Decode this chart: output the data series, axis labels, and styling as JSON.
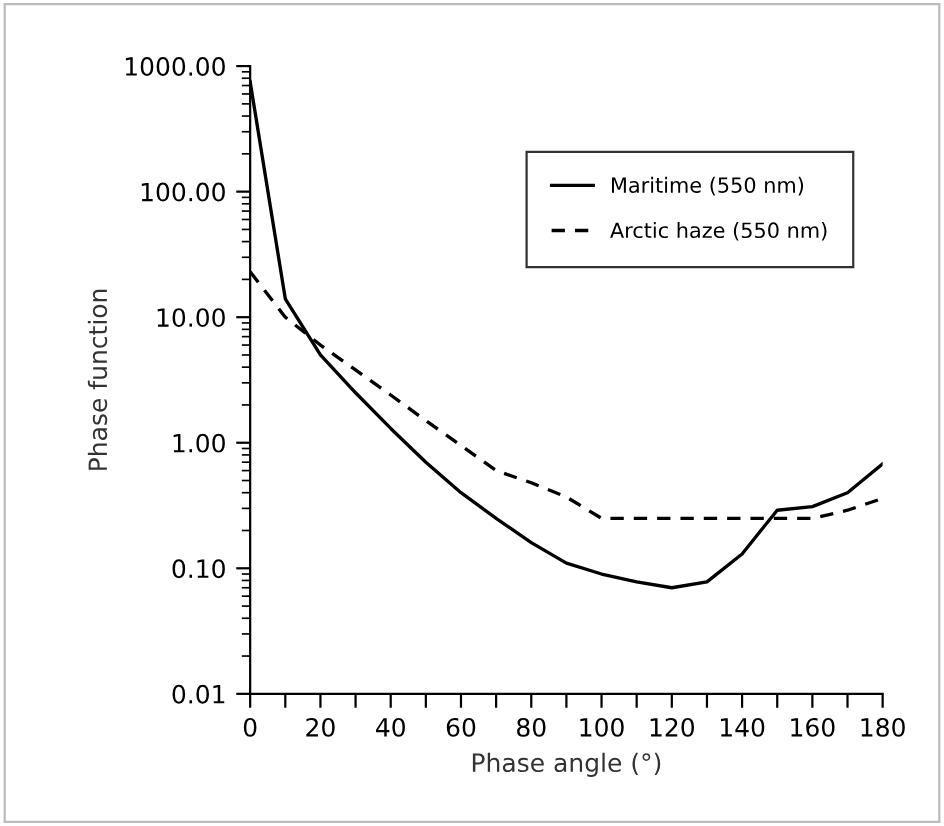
{
  "chart_data": {
    "type": "line",
    "xlabel": "Phase angle (°)",
    "ylabel": "Phase function",
    "log": "y",
    "grid": false,
    "legend": "top right",
    "x": [
      0,
      10,
      20,
      30,
      40,
      50,
      60,
      70,
      80,
      90,
      100,
      110,
      120,
      130,
      140,
      150,
      160,
      170,
      180
    ],
    "series": [
      {
        "name": "Maritime (550 nm)",
        "color": "#000000",
        "line_style": "solid",
        "values": [
          750,
          14,
          5,
          2.5,
          1.3,
          0.7,
          0.4,
          0.25,
          0.16,
          0.11,
          0.09,
          0.078,
          0.07,
          0.078,
          0.13,
          0.29,
          0.31,
          0.4,
          0.68
        ]
      },
      {
        "name": "Arctic haze (550 nm)",
        "color": "#000000",
        "line_style": "dashed",
        "values": [
          23,
          10,
          6,
          3.8,
          2.4,
          1.5,
          0.95,
          0.6,
          0.48,
          0.37,
          0.25,
          0.25,
          0.25,
          0.25,
          0.25,
          0.25,
          0.25,
          0.29,
          0.36
        ]
      }
    ],
    "xlim": [
      0,
      180
    ],
    "xticks": [
      0,
      {
        "value": 10,
        "label": null
      },
      20,
      {
        "value": 30,
        "label": null
      },
      40,
      {
        "value": 50,
        "label": null
      },
      60,
      {
        "value": 70,
        "label": null
      },
      80,
      {
        "value": 90,
        "label": null
      },
      100,
      {
        "value": 110,
        "label": null
      },
      120,
      {
        "value": 130,
        "label": null
      },
      140,
      {
        "value": 150,
        "label": null
      },
      160,
      {
        "value": 170,
        "label": null
      },
      180
    ],
    "ylim": [
      0.01,
      1000
    ],
    "yticks": [
      {
        "value": 0.01,
        "label": "0.01"
      },
      {
        "value": 0.1,
        "label": "0.10"
      },
      {
        "value": 1,
        "label": "1.00"
      },
      {
        "value": 10,
        "label": "10.00"
      },
      {
        "value": 100,
        "label": "100.00"
      },
      {
        "value": 1000,
        "label": "1000.00"
      }
    ]
  }
}
